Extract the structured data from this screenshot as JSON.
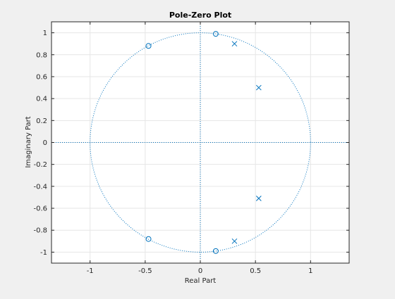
{
  "chart_data": {
    "type": "scatter",
    "title": "Pole-Zero Plot",
    "xlabel": "Real Part",
    "ylabel": "Imaginary Part",
    "xlim": [
      -1.35,
      1.35
    ],
    "ylim": [
      -1.1,
      1.1
    ],
    "xticks": [
      -1,
      -0.5,
      0,
      0.5,
      1
    ],
    "xtick_labels": [
      "-1",
      "-0.5",
      "0",
      "0.5",
      "1"
    ],
    "yticks": [
      -1,
      -0.8,
      -0.6,
      -0.4,
      -0.2,
      0,
      0.2,
      0.4,
      0.6,
      0.8,
      1
    ],
    "ytick_labels": [
      "-1",
      "-0.8",
      "-0.6",
      "-0.4",
      "-0.2",
      "0",
      "0.2",
      "0.4",
      "0.6",
      "0.8",
      "1"
    ],
    "grid": true,
    "unit_circle": true,
    "colors": {
      "marker": "#0072bd",
      "grid": "#e6e6e6",
      "axes": "#262626",
      "background": "#ffffff",
      "figure": "#f0f0f0"
    },
    "zeros": [
      {
        "x": -0.47,
        "y": 0.88
      },
      {
        "x": -0.47,
        "y": -0.88
      },
      {
        "x": 0.14,
        "y": 0.99
      },
      {
        "x": 0.14,
        "y": -0.99
      }
    ],
    "poles": [
      {
        "x": 0.31,
        "y": 0.9
      },
      {
        "x": 0.31,
        "y": -0.9
      },
      {
        "x": 0.53,
        "y": 0.5
      },
      {
        "x": 0.53,
        "y": -0.51
      }
    ]
  }
}
